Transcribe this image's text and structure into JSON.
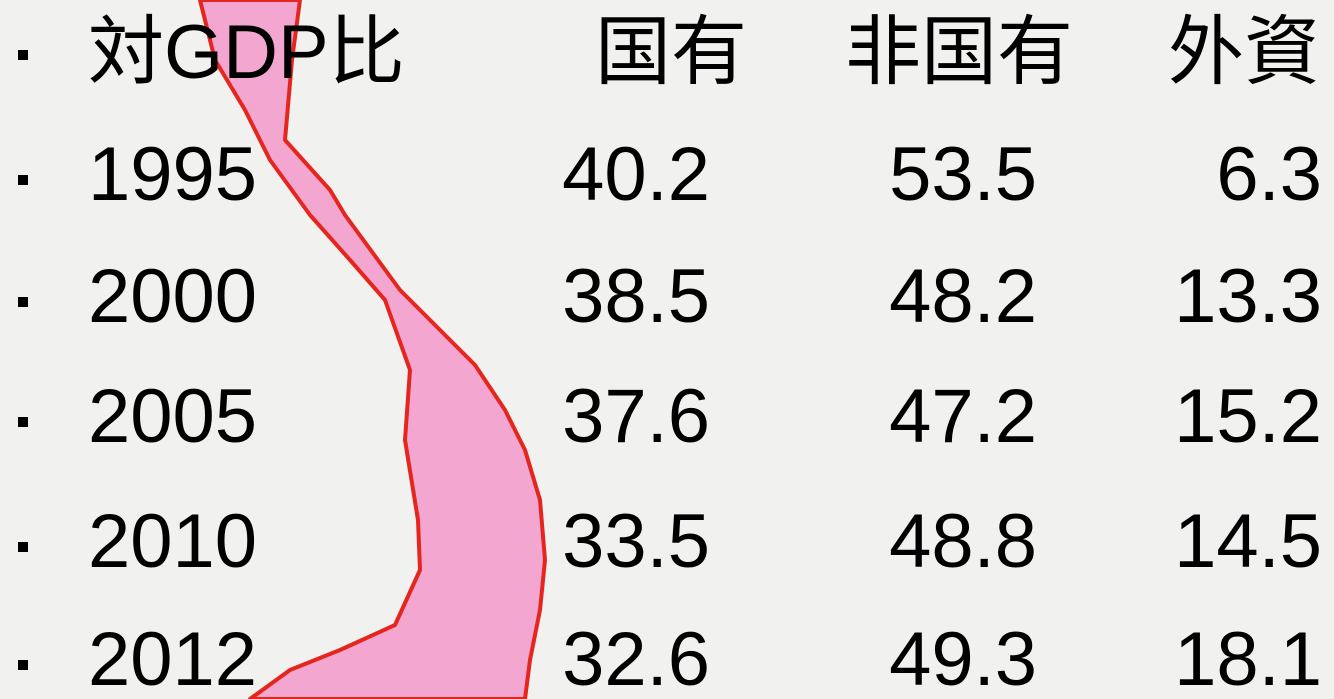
{
  "table": {
    "header": [
      "対GDP比",
      "国有",
      "非国有",
      "外資"
    ],
    "rows": [
      [
        "1995",
        "40.2",
        "53.5",
        "6.3"
      ],
      [
        "2000",
        "38.5",
        "48.2",
        "13.3"
      ],
      [
        "2005",
        "37.6",
        "47.2",
        "15.2"
      ],
      [
        "2010",
        "33.5",
        "48.8",
        "14.5"
      ],
      [
        "2012",
        "32.6",
        "49.3",
        "18.1"
      ]
    ]
  }
}
